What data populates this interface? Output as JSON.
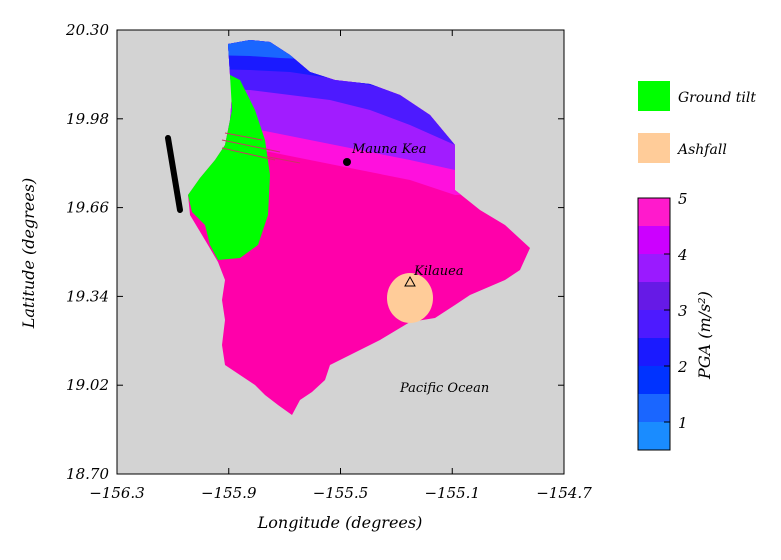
{
  "chart_data": {
    "type": "heatmap",
    "title": "",
    "xlabel": "Longitude (degrees)",
    "ylabel": "Latitude (degrees)",
    "xlim": [
      -156.3,
      -154.7
    ],
    "ylim": [
      18.7,
      20.3
    ],
    "x_ticks": [
      -156.3,
      -155.9,
      -155.5,
      -155.1,
      -154.7
    ],
    "x_tick_labels": [
      "−156.3",
      "−155.9",
      "−155.5",
      "−155.1",
      "−154.7"
    ],
    "y_ticks": [
      18.7,
      19.02,
      19.34,
      19.66,
      19.98,
      20.3
    ],
    "y_tick_labels": [
      "18.70",
      "19.02",
      "19.34",
      "19.66",
      "19.98",
      "20.30"
    ],
    "background_color": "#d3d3d3",
    "annotations": [
      {
        "text": "Mauna Kea",
        "lon": -155.48,
        "lat": 19.83,
        "marker": "dot"
      },
      {
        "text": "Kilauea",
        "lon": -155.26,
        "lat": 19.41,
        "marker": "triangle"
      },
      {
        "text": "Pacific Ocean",
        "lon": -155.5,
        "lat": 19.02,
        "marker": "none"
      }
    ],
    "fault_line": {
      "from": [
        -156.2,
        19.95
      ],
      "to": [
        -156.15,
        19.66
      ],
      "color": "#000000"
    },
    "hazard_zones": [
      {
        "name": "Ground tilt",
        "color": "#00ff00"
      },
      {
        "name": "Ashfall",
        "color": "#ffcc99"
      }
    ],
    "colorbar": {
      "label": "PGA (m/s²)",
      "min": 0.5,
      "max": 5,
      "ticks": [
        1,
        2,
        3,
        4,
        5
      ],
      "bins": [
        {
          "range": [
            0.5,
            1.0
          ],
          "color": "#1a8cff"
        },
        {
          "range": [
            1.0,
            1.5
          ],
          "color": "#1a66ff"
        },
        {
          "range": [
            1.5,
            2.0
          ],
          "color": "#0033ff"
        },
        {
          "range": [
            2.0,
            2.5
          ],
          "color": "#1a1aff"
        },
        {
          "range": [
            2.5,
            3.0
          ],
          "color": "#4d1aff"
        },
        {
          "range": [
            3.0,
            3.5
          ],
          "color": "#661ae6"
        },
        {
          "range": [
            3.5,
            4.0
          ],
          "color": "#9a1aff"
        },
        {
          "range": [
            4.0,
            4.5
          ],
          "color": "#cc00ff"
        },
        {
          "range": [
            4.5,
            5.0
          ],
          "color": "#ff1acc"
        }
      ]
    },
    "legend": {
      "placement": "right",
      "entries": [
        "Ground tilt",
        "Ashfall"
      ]
    }
  }
}
